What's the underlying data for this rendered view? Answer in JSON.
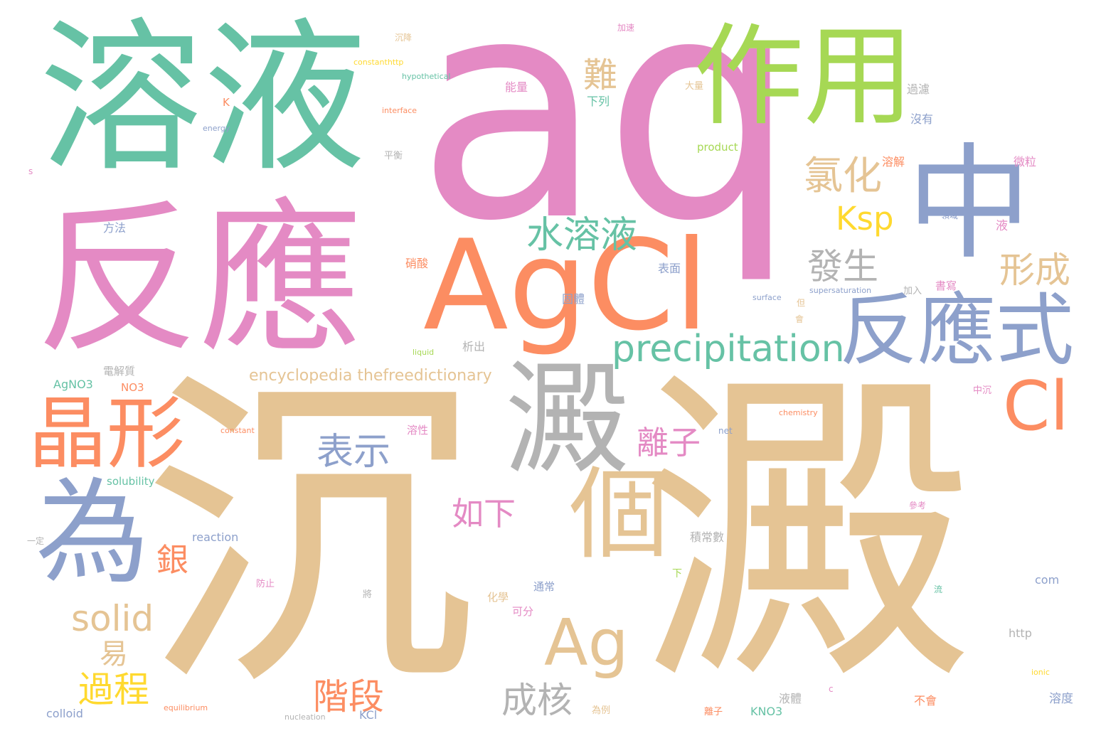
{
  "palette": {
    "pink": "#e48ac4",
    "teal": "#66c2a5",
    "orange": "#fc8d62",
    "blue": "#8da0cb",
    "green": "#a6d854",
    "yellow": "#ffd92f",
    "tan": "#e5c494",
    "gray": "#b3b3b3"
  },
  "words": [
    {
      "text": "aq",
      "color": "pink"
    },
    {
      "text": "沉",
      "color": "tan"
    },
    {
      "text": "澱",
      "color": "tan"
    },
    {
      "text": "溶液",
      "color": "teal"
    },
    {
      "text": "反應",
      "color": "pink"
    },
    {
      "text": "作用",
      "color": "green"
    },
    {
      "text": "中",
      "color": "blue"
    },
    {
      "text": "AgCl",
      "color": "orange"
    },
    {
      "text": "澱",
      "color": "gray"
    },
    {
      "text": "為",
      "color": "blue"
    },
    {
      "text": "個",
      "color": "tan"
    },
    {
      "text": "Ag",
      "color": "tan"
    },
    {
      "text": "反應式",
      "color": "blue"
    },
    {
      "text": "晶形",
      "color": "orange"
    },
    {
      "text": "Cl",
      "color": "orange"
    },
    {
      "text": "precipitation",
      "color": "teal"
    },
    {
      "text": "水溶液",
      "color": "teal"
    },
    {
      "text": "氯化",
      "color": "tan"
    },
    {
      "text": "發生",
      "color": "gray"
    },
    {
      "text": "形成",
      "color": "tan"
    },
    {
      "text": "Ksp",
      "color": "yellow"
    },
    {
      "text": "難",
      "color": "tan"
    },
    {
      "text": "表示",
      "color": "blue"
    },
    {
      "text": "離子",
      "color": "pink"
    },
    {
      "text": "如下",
      "color": "pink"
    },
    {
      "text": "solid",
      "color": "tan"
    },
    {
      "text": "過程",
      "color": "yellow"
    },
    {
      "text": "階段",
      "color": "orange"
    },
    {
      "text": "成核",
      "color": "gray"
    },
    {
      "text": "銀",
      "color": "orange"
    },
    {
      "text": "易",
      "color": "tan"
    },
    {
      "text": "encyclopedia thefreedictionary",
      "color": "tan"
    },
    {
      "text": "電解質",
      "color": "gray"
    },
    {
      "text": "AgNO3",
      "color": "teal"
    },
    {
      "text": "NO3",
      "color": "orange"
    },
    {
      "text": "析出",
      "color": "gray"
    },
    {
      "text": "solubility",
      "color": "teal"
    },
    {
      "text": "reaction",
      "color": "blue"
    },
    {
      "text": "KCl",
      "color": "blue"
    },
    {
      "text": "KNO3",
      "color": "teal"
    },
    {
      "text": "colloid",
      "color": "blue"
    },
    {
      "text": "com",
      "color": "blue"
    },
    {
      "text": "http",
      "color": "gray"
    },
    {
      "text": "溶度",
      "color": "blue"
    },
    {
      "text": "液體",
      "color": "gray"
    },
    {
      "text": "不會",
      "color": "orange"
    },
    {
      "text": "積常數",
      "color": "gray"
    },
    {
      "text": "通常",
      "color": "blue"
    },
    {
      "text": "化學",
      "color": "tan"
    },
    {
      "text": "可分",
      "color": "pink"
    },
    {
      "text": "product",
      "color": "green"
    },
    {
      "text": "溶解",
      "color": "orange"
    },
    {
      "text": "微粒",
      "color": "pink"
    },
    {
      "text": "沒有",
      "color": "blue"
    },
    {
      "text": "過濾",
      "color": "gray"
    },
    {
      "text": "下列",
      "color": "teal"
    },
    {
      "text": "能量",
      "color": "pink"
    },
    {
      "text": "方法",
      "color": "blue"
    },
    {
      "text": "表面",
      "color": "blue"
    },
    {
      "text": "固體",
      "color": "blue"
    },
    {
      "text": "硝酸",
      "color": "orange"
    },
    {
      "text": "K",
      "color": "orange"
    },
    {
      "text": "液",
      "color": "pink"
    },
    {
      "text": "書寫",
      "color": "pink"
    },
    {
      "text": "平衡",
      "color": "gray"
    },
    {
      "text": "溶性",
      "color": "pink"
    },
    {
      "text": "constant",
      "color": "orange"
    },
    {
      "text": "chemistry",
      "color": "orange"
    },
    {
      "text": "supersaturation",
      "color": "blue"
    },
    {
      "text": "equilibrium",
      "color": "orange"
    },
    {
      "text": "nucleation",
      "color": "gray"
    },
    {
      "text": "hypothetical",
      "color": "teal"
    },
    {
      "text": "interface",
      "color": "orange"
    },
    {
      "text": "energy",
      "color": "blue"
    },
    {
      "text": "constanthttp",
      "color": "yellow"
    },
    {
      "text": "liquid",
      "color": "green"
    },
    {
      "text": "surface",
      "color": "blue"
    },
    {
      "text": "ionic",
      "color": "yellow"
    },
    {
      "text": "net",
      "color": "blue"
    },
    {
      "text": "s",
      "color": "pink"
    },
    {
      "text": "c",
      "color": "pink"
    },
    {
      "text": "加入",
      "color": "gray"
    },
    {
      "text": "離子",
      "color": "orange"
    },
    {
      "text": "防止",
      "color": "pink"
    },
    {
      "text": "大量",
      "color": "tan"
    },
    {
      "text": "下",
      "color": "green"
    },
    {
      "text": "為例",
      "color": "tan"
    },
    {
      "text": "會",
      "color": "tan"
    },
    {
      "text": "但",
      "color": "tan"
    },
    {
      "text": "將",
      "color": "gray"
    },
    {
      "text": "流",
      "color": "teal"
    },
    {
      "text": "加速",
      "color": "pink"
    },
    {
      "text": "沉降",
      "color": "tan"
    },
    {
      "text": "中沉",
      "color": "pink"
    },
    {
      "text": "一定",
      "color": "gray"
    },
    {
      "text": "領域",
      "color": "blue"
    },
    {
      "text": "參考",
      "color": "pink"
    }
  ]
}
